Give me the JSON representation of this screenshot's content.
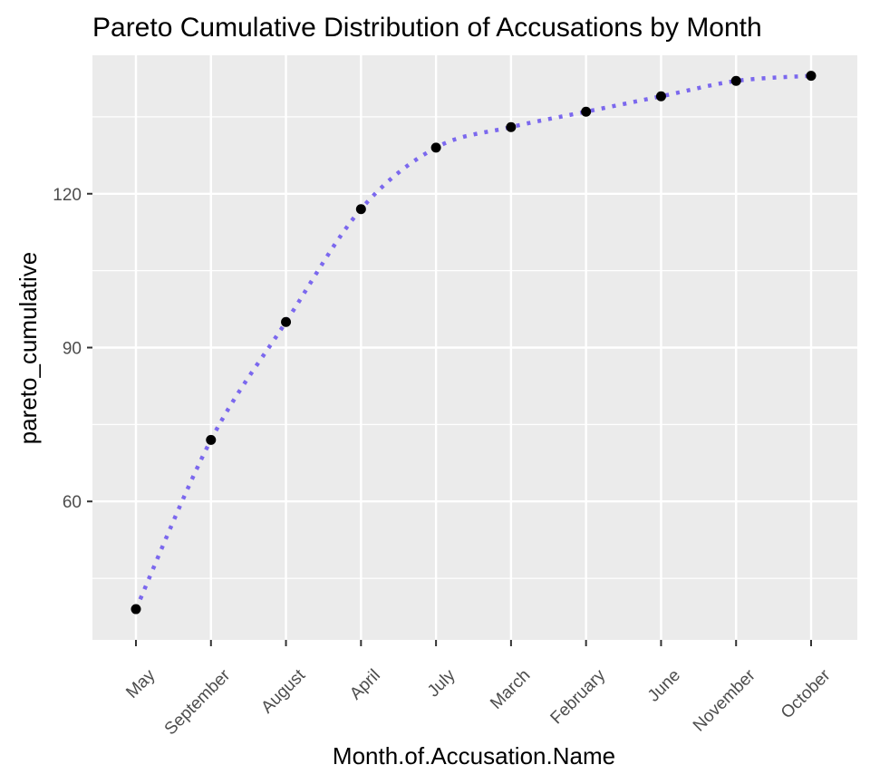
{
  "chart_data": {
    "type": "line",
    "title": "Pareto Cumulative Distribution of Accusations by Month",
    "xlabel": "Month.of.Accusation.Name",
    "ylabel": "pareto_cumulative",
    "categories": [
      "May",
      "September",
      "August",
      "April",
      "July",
      "March",
      "February",
      "June",
      "November",
      "October"
    ],
    "values": [
      39,
      72,
      95,
      117,
      129,
      133,
      136,
      139,
      142,
      143
    ],
    "ylim": [
      33,
      147
    ],
    "yticks": [
      60,
      90,
      120
    ],
    "grid": true,
    "panel_background": "#ebebeb",
    "grid_color": "#ffffff",
    "line_color": "#7b68ee",
    "line_style": "dotted",
    "point_color": "#000000"
  }
}
